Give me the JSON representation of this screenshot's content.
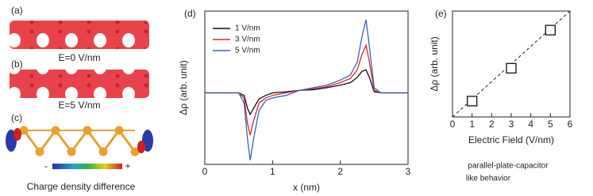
{
  "figure": {
    "label_a": "(a)",
    "label_b": "(b)",
    "label_c": "(c)",
    "field_0": "E=0 V/nm",
    "field_5": "E=5 V/nm",
    "minus": "-",
    "plus": "+",
    "caption_left": "Charge density difference",
    "note_line1": "parallel-plate-capacitor",
    "note_line2": "like behavior"
  },
  "chart_data": [
    {
      "type": "line",
      "panel_label": "(d)",
      "x_label": "x (nm)",
      "y_label": "Δρ (arb. unit)",
      "x": [
        0,
        0.5,
        0.58,
        0.63,
        0.67,
        0.72,
        0.8,
        0.9,
        1.0,
        1.2,
        1.4,
        1.6,
        1.8,
        2.0,
        2.15,
        2.25,
        2.32,
        2.38,
        2.43,
        2.5,
        2.6,
        3
      ],
      "series": [
        {
          "name": "1 V/nm",
          "color": "#111111",
          "values": [
            0,
            0,
            -0.05,
            -0.3,
            -0.42,
            -0.3,
            -0.12,
            -0.05,
            0,
            0.02,
            0.05,
            0.06,
            0.1,
            0.15,
            0.2,
            0.3,
            0.42,
            0.45,
            0.3,
            0.02,
            0,
            0
          ]
        },
        {
          "name": "3 V/nm",
          "color": "#d62728",
          "values": [
            0,
            0,
            -0.1,
            -0.6,
            -0.83,
            -0.55,
            -0.2,
            -0.1,
            -0.05,
            0,
            0.05,
            0.08,
            0.12,
            0.2,
            0.28,
            0.45,
            0.75,
            0.93,
            0.6,
            0.05,
            0,
            0
          ]
        },
        {
          "name": "5 V/nm",
          "color": "#3a63b8",
          "values": [
            0,
            0,
            -0.2,
            -0.9,
            -1.32,
            -0.9,
            -0.35,
            -0.15,
            -0.1,
            -0.05,
            0.05,
            0.1,
            0.15,
            0.25,
            0.35,
            0.6,
            1.1,
            1.43,
            0.9,
            0.1,
            0,
            0
          ]
        }
      ],
      "xlim": [
        0,
        3
      ],
      "xticks": [
        0,
        1,
        2,
        3
      ],
      "ylim": [
        -1.4,
        1.6
      ],
      "legend": "upper-left"
    },
    {
      "type": "scatter",
      "panel_label": "(e)",
      "x_label": "Electric Field (V/nm)",
      "y_label": "Δρ (arb. unit)",
      "x": [
        1,
        3,
        5
      ],
      "values": [
        0.15,
        0.46,
        0.82
      ],
      "color": "#111111",
      "fit": {
        "x": [
          0,
          6
        ],
        "values": [
          0,
          1
        ]
      },
      "xlim": [
        0,
        6
      ],
      "xticks": [
        0,
        1,
        2,
        3,
        4,
        5,
        6
      ],
      "ylim": [
        0,
        1
      ]
    }
  ]
}
